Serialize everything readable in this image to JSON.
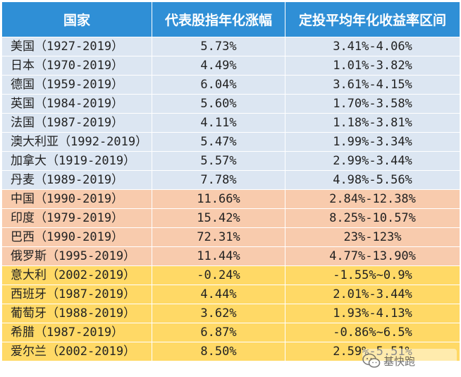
{
  "table": {
    "headers": [
      "国家",
      "代表股指年化涨幅",
      "定投平均年化收益率区间"
    ],
    "groups": [
      {
        "name": "developed",
        "color": "#dce6f2",
        "rows": [
          [
            "美国（1927-2019）",
            "5.73%",
            "3.41%-4.06%"
          ],
          [
            "日本（1970-2019）",
            "4.49%",
            "1.01%-3.82%"
          ],
          [
            "德国（1959-2019）",
            "6.04%",
            "3.61%-4.15%"
          ],
          [
            "英国（1984-2019）",
            "5.60%",
            "1.70%-3.58%"
          ],
          [
            "法国（1987-2019）",
            "4.11%",
            "1.18%-3.81%"
          ],
          [
            "澳大利亚（1992-2019）",
            "5.47%",
            "1.99%-3.34%"
          ],
          [
            "加拿大（1919-2019）",
            "5.57%",
            "2.99%-3.44%"
          ],
          [
            "丹麦（1989-2019）",
            "7.78%",
            "4.98%-5.56%"
          ]
        ]
      },
      {
        "name": "emerging",
        "color": "#f8cbad",
        "rows": [
          [
            "中国（1990-2019）",
            "11.66%",
            "2.84%-12.38%"
          ],
          [
            "印度（1979-2019）",
            "15.42%",
            "8.25%-10.57%"
          ],
          [
            "巴西（1990-2019）",
            "72.31%",
            "23%-123%"
          ],
          [
            "俄罗斯（1995-2019）",
            "11.44%",
            "4.77%-13.90%"
          ]
        ]
      },
      {
        "name": "southern-europe",
        "color": "#ffd966",
        "rows": [
          [
            "意大利（2002-2019）",
            "-0.24%",
            "-1.55%~0.9%"
          ],
          [
            "西班牙（1987-2019）",
            "4.44%",
            "2.01%-3.44%"
          ],
          [
            "葡萄牙（1988-2019）",
            "3.62%",
            "1.93%-4.13%"
          ],
          [
            "希腊（1987-2019）",
            "6.87%",
            "-0.86%~6.5%"
          ],
          [
            "爱尔兰（2002-2019）",
            "8.50%",
            "2.59%-5.51%"
          ]
        ]
      }
    ],
    "header_color": "#2f8fd6"
  },
  "watermark": {
    "text": "基快跑",
    "icon": "wechat-logo-icon"
  }
}
